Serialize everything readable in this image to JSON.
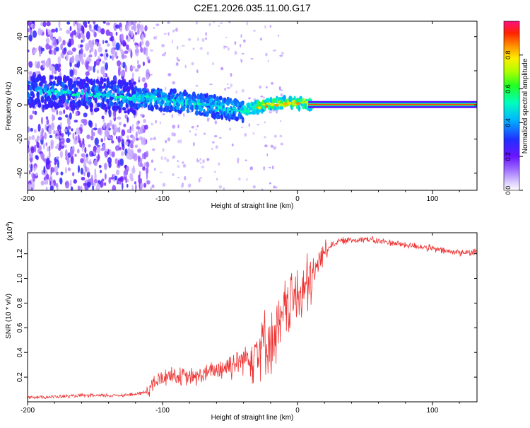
{
  "title": "C2E1.2026.035.11.00.G17",
  "chart_data": [
    {
      "type": "heatmap",
      "title": "C2E1.2026.035.11.00.G17",
      "xlabel": "Height of straight line (km)",
      "ylabel": "Frequency (Hz)",
      "xlim": [
        -200,
        133
      ],
      "ylim": [
        -50,
        49
      ],
      "x_ticks": [
        -200,
        -100,
        0,
        100
      ],
      "x_tick_labels": [
        "-200",
        "-100",
        "0",
        "100"
      ],
      "y_ticks": [
        -40,
        -20,
        0,
        20,
        40
      ],
      "y_tick_labels": [
        "-40",
        "-20",
        "0",
        "20",
        "40"
      ],
      "colorbar": {
        "label": "Normalized spectral amplitude",
        "range": [
          0,
          1
        ],
        "ticks": [
          0.0,
          0.2,
          0.4,
          0.6,
          0.8
        ],
        "tick_labels": [
          "0.0",
          "0.2",
          "0.4",
          "0.6",
          "0.8"
        ],
        "colors": [
          "#ffffff",
          "#b59bff",
          "#7b1fff",
          "#2233ff",
          "#00ccff",
          "#00ff66",
          "#99ff00",
          "#ffcc00",
          "#ff3300",
          "#ff0077"
        ]
      },
      "ridge": {
        "x": [
          -190,
          -170,
          -150,
          -130,
          -110,
          -90,
          -70,
          -55,
          -40,
          -30,
          -20,
          -10,
          0,
          10,
          20,
          60,
          100,
          133
        ],
        "frequency": [
          8,
          7,
          6,
          5,
          4,
          2,
          0,
          -2,
          -3,
          -1,
          0.5,
          1,
          1,
          0.3,
          0.2,
          0.2,
          0.2,
          0.2
        ]
      }
    },
    {
      "type": "line",
      "xlabel": "Height of straight line (km)",
      "ylabel": "SNR (10 * v/v)",
      "y_scale_note": "(x10",
      "y_scale_exponent": "4",
      "xlim": [
        -200,
        133
      ],
      "ylim": [
        0,
        1.37
      ],
      "x_ticks": [
        -200,
        -100,
        0,
        100
      ],
      "x_tick_labels": [
        "-200",
        "-100",
        "0",
        "100"
      ],
      "y_ticks": [
        0.2,
        0.4,
        0.6,
        0.8,
        1.0,
        1.2
      ],
      "y_tick_labels": [
        "0.2",
        "0.4",
        "0.6",
        "0.8",
        "1.0",
        "1.2"
      ],
      "line_color": "#ee3333",
      "series": [
        {
          "name": "SNR",
          "x": [
            -200,
            -180,
            -160,
            -140,
            -120,
            -112,
            -105,
            -95,
            -85,
            -75,
            -65,
            -55,
            -45,
            -35,
            -28,
            -22,
            -18,
            -12,
            -8,
            -4,
            0,
            5,
            10,
            15,
            20,
            25,
            30,
            40,
            50,
            60,
            70,
            80,
            90,
            100,
            110,
            120,
            133
          ],
          "y": [
            0.04,
            0.04,
            0.05,
            0.05,
            0.06,
            0.08,
            0.16,
            0.22,
            0.2,
            0.2,
            0.24,
            0.28,
            0.32,
            0.38,
            0.46,
            0.5,
            0.48,
            0.62,
            0.8,
            0.82,
            0.85,
            0.9,
            0.95,
            1.12,
            1.22,
            1.27,
            1.3,
            1.31,
            1.32,
            1.3,
            1.29,
            1.27,
            1.26,
            1.24,
            1.22,
            1.21,
            1.21
          ]
        }
      ]
    }
  ]
}
